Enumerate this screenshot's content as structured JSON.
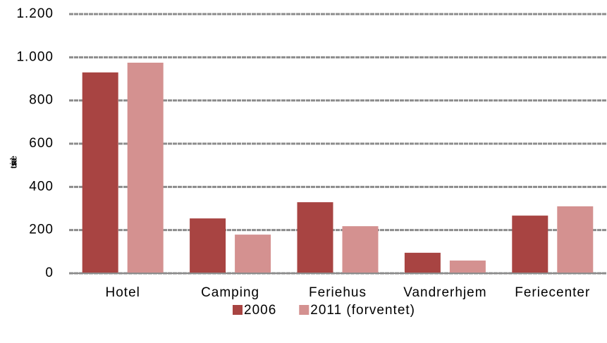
{
  "chart_data": {
    "type": "bar",
    "y_label": "tusinde",
    "categories": [
      "Hotel",
      "Camping",
      "Feriehus",
      "Vandrerhjem",
      "Feriecenter"
    ],
    "series": [
      {
        "name": "2006",
        "color": "#a84442",
        "values": [
          930,
          254,
          329,
          95,
          267
        ]
      },
      {
        "name": "2011 (forventet)",
        "color": "#d49190",
        "values": [
          975,
          179,
          218,
          59,
          310
        ]
      }
    ],
    "ylim": [
      0,
      1200
    ],
    "yticks": [
      0,
      200,
      400,
      600,
      800,
      {
        "value": 1000,
        "label": "1.000"
      },
      {
        "value": 1200,
        "label": "1.200"
      }
    ],
    "grid": true,
    "legend": "bottom"
  }
}
